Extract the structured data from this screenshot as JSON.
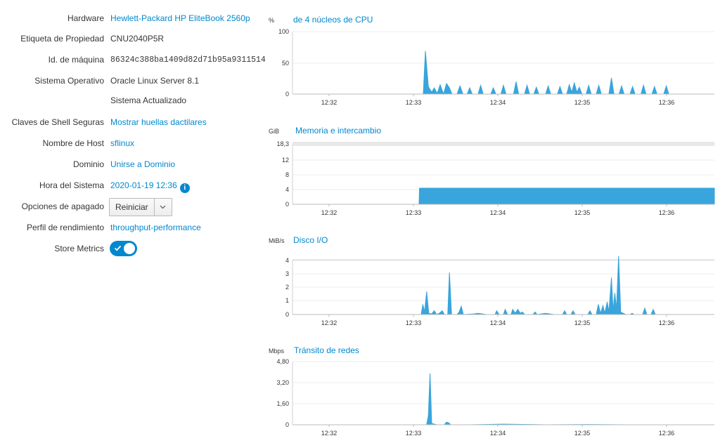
{
  "system": {
    "hardware_label": "Hardware",
    "hardware_value": "Hewlett-Packard HP EliteBook 2560p",
    "asset_tag_label": "Etiqueta de Propiedad",
    "asset_tag_value": "CNU2040P5R",
    "machine_id_label": "Id. de máquina",
    "machine_id_value": "86324c388ba1409d82d71b95a9311514",
    "os_label": "Sistema Operativo",
    "os_value": "Oracle Linux Server 8.1",
    "os_status": "Sistema Actualizado",
    "ssh_label": "Claves de Shell Seguras",
    "ssh_value": "Mostrar huellas dactilares",
    "hostname_label": "Nombre de Host",
    "hostname_value": "sflinux",
    "domain_label": "Dominio",
    "domain_value": "Unirse a Dominio",
    "time_label": "Hora del Sistema",
    "time_value": "2020-01-19 12:36",
    "power_label": "Opciones de apagado",
    "power_button": "Reiniciar",
    "profile_label": "Perfil de rendimiento",
    "profile_value": "throughput-performance",
    "metrics_label": "Store Metrics",
    "metrics_enabled": true,
    "icons": {
      "info": "info-circle-icon",
      "caret": "chevron-down-icon",
      "toggle": "check-icon"
    }
  },
  "accent_color": "#0088ce",
  "chart_color": "#39a5dc",
  "chart_data": [
    {
      "type": "area",
      "unit": "%",
      "title": "de 4 núcleos de CPU",
      "yticks": [
        "100",
        "50",
        "0"
      ],
      "ylim": [
        0,
        100
      ],
      "xticks": [
        "12:32",
        "12:33",
        "12:34",
        "12:35",
        "12:36"
      ],
      "points": [
        [
          0,
          0
        ],
        [
          0.31,
          0
        ],
        [
          0.315,
          69
        ],
        [
          0.322,
          12
        ],
        [
          0.33,
          3
        ],
        [
          0.336,
          10
        ],
        [
          0.343,
          1
        ],
        [
          0.35,
          15
        ],
        [
          0.358,
          0
        ],
        [
          0.365,
          17
        ],
        [
          0.372,
          10
        ],
        [
          0.378,
          0
        ],
        [
          0.39,
          0
        ],
        [
          0.397,
          13
        ],
        [
          0.404,
          0
        ],
        [
          0.414,
          0
        ],
        [
          0.42,
          10
        ],
        [
          0.426,
          0
        ],
        [
          0.44,
          0
        ],
        [
          0.446,
          14
        ],
        [
          0.452,
          0
        ],
        [
          0.47,
          0
        ],
        [
          0.476,
          10
        ],
        [
          0.482,
          0
        ],
        [
          0.494,
          0
        ],
        [
          0.5,
          14
        ],
        [
          0.506,
          0
        ],
        [
          0.524,
          0
        ],
        [
          0.53,
          20
        ],
        [
          0.536,
          0
        ],
        [
          0.55,
          0
        ],
        [
          0.556,
          14
        ],
        [
          0.562,
          0
        ],
        [
          0.572,
          0
        ],
        [
          0.578,
          11
        ],
        [
          0.584,
          0
        ],
        [
          0.6,
          0
        ],
        [
          0.606,
          13
        ],
        [
          0.612,
          0
        ],
        [
          0.628,
          0
        ],
        [
          0.634,
          12
        ],
        [
          0.64,
          0
        ],
        [
          0.65,
          0
        ],
        [
          0.656,
          15
        ],
        [
          0.662,
          3
        ],
        [
          0.668,
          18
        ],
        [
          0.674,
          3
        ],
        [
          0.68,
          11
        ],
        [
          0.686,
          0
        ],
        [
          0.696,
          0
        ],
        [
          0.702,
          14
        ],
        [
          0.708,
          0
        ],
        [
          0.72,
          0
        ],
        [
          0.726,
          14
        ],
        [
          0.732,
          0
        ],
        [
          0.75,
          0
        ],
        [
          0.756,
          26
        ],
        [
          0.762,
          0
        ],
        [
          0.774,
          0
        ],
        [
          0.78,
          13
        ],
        [
          0.786,
          0
        ],
        [
          0.8,
          0
        ],
        [
          0.806,
          12
        ],
        [
          0.812,
          0
        ],
        [
          0.826,
          0
        ],
        [
          0.832,
          14
        ],
        [
          0.838,
          0
        ],
        [
          0.852,
          0
        ],
        [
          0.858,
          12
        ],
        [
          0.864,
          0
        ],
        [
          0.88,
          0
        ],
        [
          0.886,
          13
        ],
        [
          0.892,
          0
        ],
        [
          1,
          0
        ]
      ]
    },
    {
      "type": "area",
      "unit": "GiB",
      "title": "Memoria e intercambio",
      "yticks": [
        "18,3",
        "12",
        "8",
        "4",
        "0"
      ],
      "ylim": [
        0,
        18.3
      ],
      "xticks": [
        "12:32",
        "12:33",
        "12:34",
        "12:35",
        "12:36"
      ],
      "points": [
        [
          0,
          0
        ],
        [
          0.3,
          0
        ],
        [
          0.301,
          4.9
        ],
        [
          1,
          4.9
        ]
      ]
    },
    {
      "type": "area",
      "unit": "MiB/s",
      "title": "Disco I/O",
      "yticks": [
        "4",
        "3",
        "2",
        "1",
        "0"
      ],
      "ylim": [
        0,
        4.3
      ],
      "xticks": [
        "12:32",
        "12:33",
        "12:34",
        "12:35",
        "12:36"
      ],
      "points": [
        [
          0,
          0
        ],
        [
          0.305,
          0
        ],
        [
          0.309,
          0.8
        ],
        [
          0.313,
          0.2
        ],
        [
          0.318,
          1.8
        ],
        [
          0.323,
          0.1
        ],
        [
          0.33,
          0.05
        ],
        [
          0.336,
          0.3
        ],
        [
          0.342,
          0
        ],
        [
          0.348,
          0.1
        ],
        [
          0.355,
          0.3
        ],
        [
          0.36,
          0
        ],
        [
          0.368,
          0
        ],
        [
          0.372,
          3.3
        ],
        [
          0.377,
          0
        ],
        [
          0.39,
          0
        ],
        [
          0.395,
          0.2
        ],
        [
          0.4,
          0.65
        ],
        [
          0.405,
          0
        ],
        [
          0.43,
          0.05
        ],
        [
          0.44,
          0.1
        ],
        [
          0.46,
          0
        ],
        [
          0.48,
          0
        ],
        [
          0.484,
          0.3
        ],
        [
          0.49,
          0
        ],
        [
          0.5,
          0
        ],
        [
          0.504,
          0.4
        ],
        [
          0.51,
          0
        ],
        [
          0.518,
          0
        ],
        [
          0.522,
          0.4
        ],
        [
          0.528,
          0.1
        ],
        [
          0.534,
          0.4
        ],
        [
          0.54,
          0.1
        ],
        [
          0.545,
          0.2
        ],
        [
          0.55,
          0
        ],
        [
          0.57,
          0
        ],
        [
          0.575,
          0.2
        ],
        [
          0.58,
          0
        ],
        [
          0.6,
          0.1
        ],
        [
          0.62,
          0
        ],
        [
          0.64,
          0
        ],
        [
          0.645,
          0.3
        ],
        [
          0.65,
          0
        ],
        [
          0.66,
          0
        ],
        [
          0.665,
          0.3
        ],
        [
          0.67,
          0
        ],
        [
          0.7,
          0
        ],
        [
          0.705,
          0.3
        ],
        [
          0.71,
          0
        ],
        [
          0.72,
          0
        ],
        [
          0.725,
          0.8
        ],
        [
          0.73,
          0.1
        ],
        [
          0.736,
          0.7
        ],
        [
          0.74,
          0.1
        ],
        [
          0.746,
          1.0
        ],
        [
          0.75,
          0.2
        ],
        [
          0.756,
          2.9
        ],
        [
          0.76,
          0.3
        ],
        [
          0.764,
          1.7
        ],
        [
          0.768,
          0.4
        ],
        [
          0.773,
          4.6
        ],
        [
          0.778,
          0.2
        ],
        [
          0.79,
          0
        ],
        [
          0.8,
          0
        ],
        [
          0.805,
          0.1
        ],
        [
          0.81,
          0
        ],
        [
          0.83,
          0
        ],
        [
          0.835,
          0.5
        ],
        [
          0.84,
          0
        ],
        [
          0.85,
          0
        ],
        [
          0.855,
          0.4
        ],
        [
          0.86,
          0
        ],
        [
          1,
          0
        ]
      ]
    },
    {
      "type": "area",
      "unit": "Mbps",
      "title": "Tránsito de redes",
      "yticks": [
        "4,80",
        "3,20",
        "1,60",
        "0"
      ],
      "ylim": [
        0,
        4.8
      ],
      "xticks": [
        "12:32",
        "12:33",
        "12:34",
        "12:35",
        "12:36"
      ],
      "points": [
        [
          0,
          0
        ],
        [
          0.318,
          0
        ],
        [
          0.322,
          0.7
        ],
        [
          0.326,
          3.9
        ],
        [
          0.33,
          0.1
        ],
        [
          0.336,
          0.05
        ],
        [
          0.342,
          0
        ],
        [
          0.36,
          0
        ],
        [
          0.365,
          0.2
        ],
        [
          0.37,
          0.15
        ],
        [
          0.375,
          0
        ],
        [
          0.42,
          0
        ],
        [
          0.5,
          0.05
        ],
        [
          0.6,
          0
        ],
        [
          0.7,
          0.02
        ],
        [
          0.8,
          0
        ],
        [
          1,
          0
        ]
      ]
    }
  ]
}
